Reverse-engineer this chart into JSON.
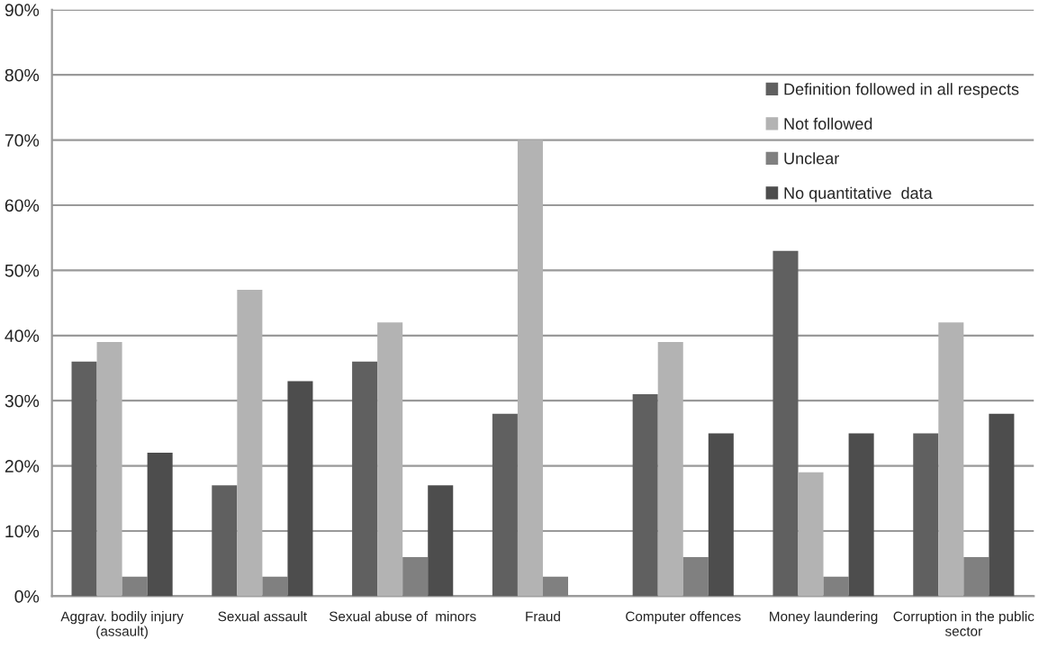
{
  "chart_data": {
    "type": "bar",
    "categories": [
      "Aggrav. bodily injury\n(assault)",
      "Sexual assault",
      "Sexual abuse of  minors",
      "Fraud",
      "Computer offences",
      "Money laundering",
      "Corruption in the public\nsector"
    ],
    "series": [
      {
        "name": "Definition followed in all respects",
        "color": "#606060",
        "values": [
          36,
          17,
          36,
          28,
          31,
          53,
          25
        ]
      },
      {
        "name": "Not followed",
        "color": "#b3b3b3",
        "values": [
          39,
          47,
          42,
          70,
          39,
          19,
          42
        ]
      },
      {
        "name": "Unclear",
        "color": "#808080",
        "values": [
          3,
          3,
          6,
          3,
          6,
          3,
          6
        ]
      },
      {
        "name": "No quantitative  data",
        "color": "#4d4d4d",
        "values": [
          22,
          33,
          17,
          null,
          25,
          25,
          28
        ]
      }
    ],
    "ylim": [
      0,
      90
    ],
    "yticks": [
      {
        "value": 0,
        "label": "0%"
      },
      {
        "value": 10,
        "label": "10%"
      },
      {
        "value": 20,
        "label": "20%"
      },
      {
        "value": 30,
        "label": "30%"
      },
      {
        "value": 40,
        "label": "40%"
      },
      {
        "value": 50,
        "label": "50%"
      },
      {
        "value": 60,
        "label": "60%"
      },
      {
        "value": 70,
        "label": "70%"
      },
      {
        "value": 80,
        "label": "80%"
      },
      {
        "value": 90,
        "label": "90%"
      }
    ],
    "grid": "y",
    "legend": "top right"
  }
}
